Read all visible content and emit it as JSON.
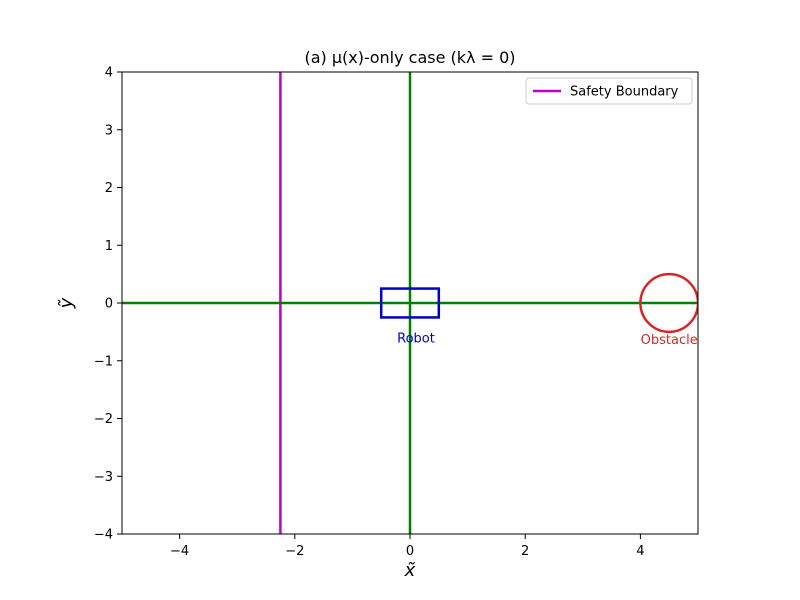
{
  "chart_data": {
    "type": "line",
    "title": "(a) μ(x)-only case (kλ = 0)",
    "xlabel": "x̃",
    "ylabel": "ỹ",
    "xlim": [
      -5,
      5
    ],
    "ylim": [
      -4,
      4
    ],
    "xticks": [
      -4,
      -2,
      0,
      2,
      4
    ],
    "yticks": [
      -4,
      -3,
      -2,
      -1,
      0,
      1,
      2,
      3,
      4
    ],
    "grid": false,
    "legend": {
      "placement": "top-right",
      "entries": [
        "Safety Boundary"
      ]
    },
    "series": [
      {
        "name": "Safety Boundary",
        "color": "#bf00bf",
        "points": [
          [
            -2.25,
            -4
          ],
          [
            -2.25,
            4
          ]
        ]
      },
      {
        "color": "#008000",
        "points": [
          [
            -5,
            0
          ],
          [
            5,
            0
          ]
        ]
      },
      {
        "color": "#008000",
        "points": [
          [
            0,
            -4
          ],
          [
            0,
            4
          ]
        ]
      }
    ],
    "robot": {
      "label": "Robot",
      "color": "#0000cc",
      "x": [
        -0.5,
        0.5
      ],
      "y": [
        -0.25,
        0.25
      ]
    },
    "obstacle": {
      "label": "Obstacle",
      "color": "#d62728",
      "center": [
        4.5,
        0
      ],
      "radius": 0.5
    }
  }
}
